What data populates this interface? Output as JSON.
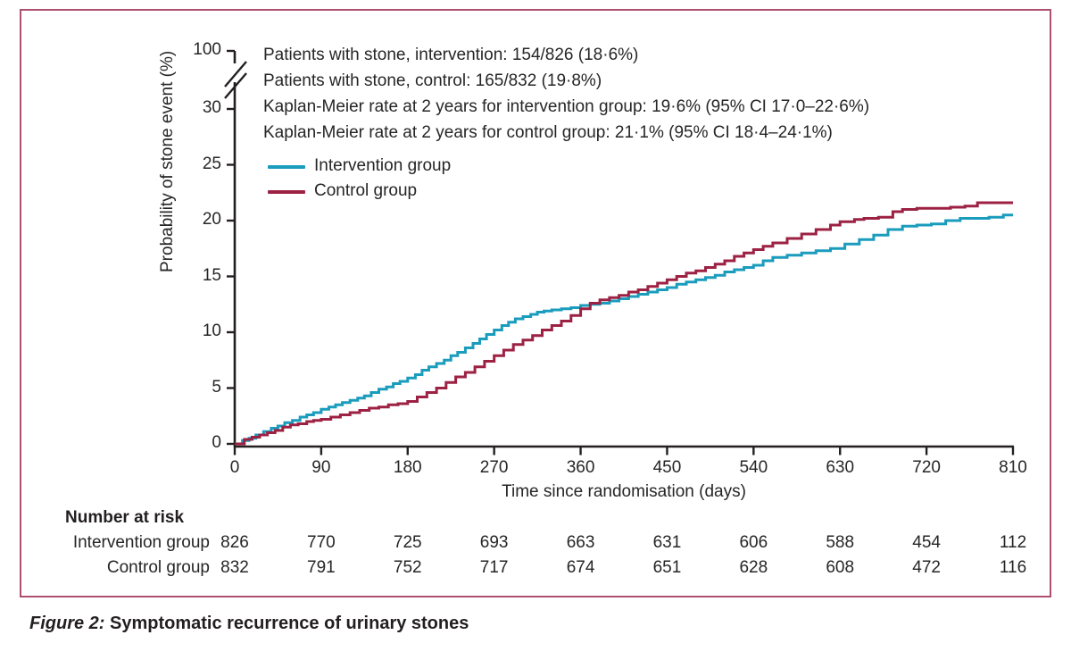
{
  "figure": {
    "caption_prefix": "Figure 2:",
    "caption_text": " Symptomatic recurrence of urinary stones",
    "frame_color": "#ad4f70"
  },
  "annotations": {
    "lines": [
      "Patients with stone, intervention: 154/826 (18·6%)",
      "Patients with stone, control: 165/832 (19·8%)",
      "Kaplan-Meier rate at 2 years for intervention group: 19·6% (95% CI 17·0–22·6%)",
      "Kaplan-Meier rate at 2 years for control group: 21·1% (95% CI 18·4–24·1%)"
    ]
  },
  "legend": {
    "items": [
      {
        "label": "Intervention group",
        "color": "#1a9cbd"
      },
      {
        "label": "Control group",
        "color": "#9c2143"
      }
    ]
  },
  "number_at_risk": {
    "header": "Number at risk",
    "rows": [
      {
        "label": "Intervention group",
        "values": [
          826,
          770,
          725,
          693,
          663,
          631,
          606,
          588,
          454,
          112
        ]
      },
      {
        "label": "Control group",
        "values": [
          832,
          791,
          752,
          717,
          674,
          651,
          628,
          608,
          472,
          116
        ]
      }
    ]
  },
  "chart_data": {
    "type": "line",
    "subtype": "kaplan-meier-step",
    "title": "",
    "xlabel": "Time since randomisation (days)",
    "ylabel": "Probability of stone event (%)",
    "xlim": [
      0,
      810
    ],
    "ylim": [
      0,
      30
    ],
    "y_axis_break": true,
    "y_break_top_label": "100",
    "x_ticks": [
      0,
      90,
      180,
      270,
      360,
      450,
      540,
      630,
      720,
      810
    ],
    "y_ticks": [
      0,
      5,
      10,
      15,
      20,
      25,
      30
    ],
    "grid": false,
    "legend_position": "upper-left-inside",
    "axis_color": "#231f20",
    "series": [
      {
        "name": "Intervention group",
        "color": "#1a9cbd",
        "points": [
          [
            0,
            0
          ],
          [
            8,
            0.3
          ],
          [
            15,
            0.5
          ],
          [
            22,
            0.8
          ],
          [
            30,
            1.1
          ],
          [
            38,
            1.4
          ],
          [
            45,
            1.6
          ],
          [
            52,
            1.9
          ],
          [
            60,
            2.1
          ],
          [
            68,
            2.4
          ],
          [
            75,
            2.6
          ],
          [
            82,
            2.8
          ],
          [
            90,
            3.1
          ],
          [
            98,
            3.3
          ],
          [
            105,
            3.5
          ],
          [
            112,
            3.7
          ],
          [
            120,
            3.9
          ],
          [
            128,
            4.1
          ],
          [
            135,
            4.3
          ],
          [
            142,
            4.6
          ],
          [
            150,
            4.9
          ],
          [
            158,
            5.1
          ],
          [
            165,
            5.4
          ],
          [
            172,
            5.6
          ],
          [
            180,
            5.9
          ],
          [
            188,
            6.2
          ],
          [
            195,
            6.6
          ],
          [
            202,
            6.9
          ],
          [
            210,
            7.2
          ],
          [
            218,
            7.5
          ],
          [
            225,
            7.9
          ],
          [
            232,
            8.2
          ],
          [
            240,
            8.6
          ],
          [
            248,
            9.0
          ],
          [
            255,
            9.4
          ],
          [
            262,
            9.8
          ],
          [
            270,
            10.2
          ],
          [
            278,
            10.6
          ],
          [
            285,
            10.9
          ],
          [
            292,
            11.2
          ],
          [
            300,
            11.4
          ],
          [
            308,
            11.6
          ],
          [
            315,
            11.8
          ],
          [
            322,
            11.9
          ],
          [
            330,
            12.0
          ],
          [
            340,
            12.1
          ],
          [
            350,
            12.2
          ],
          [
            360,
            12.4
          ],
          [
            370,
            12.5
          ],
          [
            380,
            12.6
          ],
          [
            390,
            12.8
          ],
          [
            400,
            13.0
          ],
          [
            410,
            13.2
          ],
          [
            420,
            13.4
          ],
          [
            430,
            13.6
          ],
          [
            440,
            13.8
          ],
          [
            450,
            14.0
          ],
          [
            460,
            14.3
          ],
          [
            470,
            14.5
          ],
          [
            480,
            14.7
          ],
          [
            490,
            14.9
          ],
          [
            500,
            15.1
          ],
          [
            510,
            15.4
          ],
          [
            520,
            15.6
          ],
          [
            530,
            15.8
          ],
          [
            540,
            16.0
          ],
          [
            550,
            16.4
          ],
          [
            560,
            16.7
          ],
          [
            575,
            16.9
          ],
          [
            590,
            17.1
          ],
          [
            605,
            17.3
          ],
          [
            620,
            17.5
          ],
          [
            635,
            17.9
          ],
          [
            650,
            18.3
          ],
          [
            665,
            18.7
          ],
          [
            680,
            19.2
          ],
          [
            695,
            19.5
          ],
          [
            710,
            19.6
          ],
          [
            725,
            19.7
          ],
          [
            740,
            20.0
          ],
          [
            755,
            20.2
          ],
          [
            770,
            20.2
          ],
          [
            785,
            20.3
          ],
          [
            800,
            20.5
          ],
          [
            810,
            20.5
          ]
        ]
      },
      {
        "name": "Control group",
        "color": "#9c2143",
        "points": [
          [
            0,
            0
          ],
          [
            10,
            0.4
          ],
          [
            18,
            0.6
          ],
          [
            26,
            0.8
          ],
          [
            34,
            1.0
          ],
          [
            42,
            1.2
          ],
          [
            50,
            1.5
          ],
          [
            58,
            1.7
          ],
          [
            66,
            1.8
          ],
          [
            75,
            2.0
          ],
          [
            82,
            2.1
          ],
          [
            90,
            2.2
          ],
          [
            100,
            2.4
          ],
          [
            110,
            2.6
          ],
          [
            120,
            2.8
          ],
          [
            130,
            3.0
          ],
          [
            140,
            3.2
          ],
          [
            150,
            3.3
          ],
          [
            160,
            3.5
          ],
          [
            170,
            3.6
          ],
          [
            180,
            3.8
          ],
          [
            190,
            4.2
          ],
          [
            200,
            4.6
          ],
          [
            210,
            5.0
          ],
          [
            220,
            5.5
          ],
          [
            230,
            6.0
          ],
          [
            240,
            6.4
          ],
          [
            250,
            6.9
          ],
          [
            260,
            7.4
          ],
          [
            270,
            7.9
          ],
          [
            280,
            8.4
          ],
          [
            290,
            8.9
          ],
          [
            300,
            9.3
          ],
          [
            310,
            9.7
          ],
          [
            320,
            10.2
          ],
          [
            330,
            10.6
          ],
          [
            340,
            11.0
          ],
          [
            350,
            11.5
          ],
          [
            360,
            12.1
          ],
          [
            370,
            12.6
          ],
          [
            380,
            12.9
          ],
          [
            390,
            13.1
          ],
          [
            400,
            13.3
          ],
          [
            410,
            13.6
          ],
          [
            420,
            13.8
          ],
          [
            430,
            14.1
          ],
          [
            440,
            14.4
          ],
          [
            450,
            14.7
          ],
          [
            460,
            15.0
          ],
          [
            470,
            15.3
          ],
          [
            480,
            15.5
          ],
          [
            490,
            15.8
          ],
          [
            500,
            16.1
          ],
          [
            510,
            16.4
          ],
          [
            520,
            16.8
          ],
          [
            530,
            17.1
          ],
          [
            540,
            17.4
          ],
          [
            550,
            17.7
          ],
          [
            560,
            18.0
          ],
          [
            575,
            18.4
          ],
          [
            590,
            18.8
          ],
          [
            605,
            19.2
          ],
          [
            620,
            19.6
          ],
          [
            630,
            19.9
          ],
          [
            645,
            20.1
          ],
          [
            655,
            20.2
          ],
          [
            670,
            20.3
          ],
          [
            685,
            20.8
          ],
          [
            695,
            21.0
          ],
          [
            710,
            21.1
          ],
          [
            730,
            21.1
          ],
          [
            745,
            21.2
          ],
          [
            760,
            21.3
          ],
          [
            773,
            21.6
          ],
          [
            790,
            21.6
          ],
          [
            810,
            21.6
          ]
        ]
      }
    ]
  }
}
